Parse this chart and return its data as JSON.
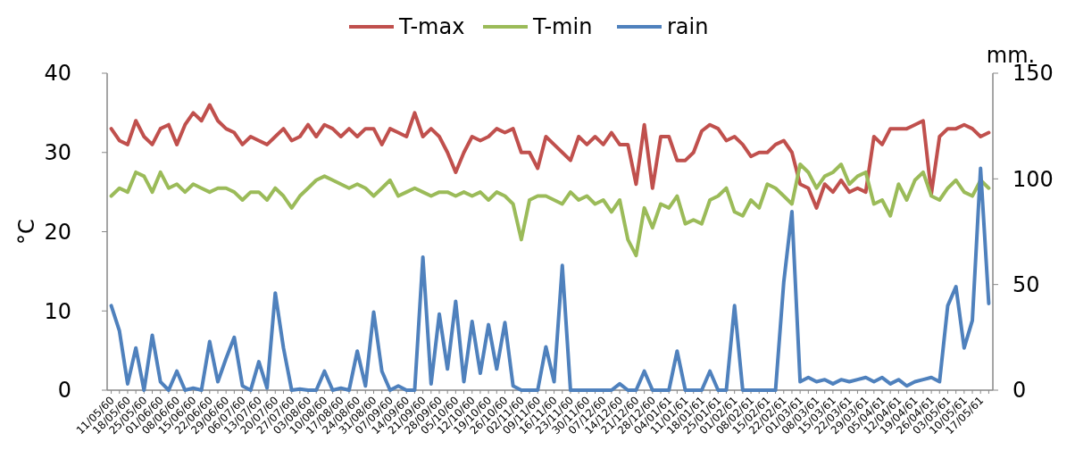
{
  "chart_data": {
    "type": "line",
    "ylabel": "°C",
    "y2label": "mm.",
    "legend": "top",
    "categories": [
      "11/05/60",
      null,
      "18/05/60",
      null,
      "25/05/60",
      null,
      "01/06/60",
      null,
      "08/06/60",
      null,
      "15/06/60",
      null,
      "22/06/60",
      null,
      "29/06/60",
      null,
      "06/07/60",
      null,
      "13/07/60",
      null,
      "20/07/60",
      null,
      "27/07/60",
      null,
      "03/08/60",
      null,
      "10/08/60",
      null,
      "17/08/60",
      null,
      "24/08/60",
      null,
      "31/08/60",
      null,
      "07/09/60",
      null,
      "14/09/60",
      null,
      "21/09/60",
      null,
      "28/09/60",
      null,
      "05/10/60",
      null,
      "12/10/60",
      null,
      "19/10/60",
      null,
      "26/10/60",
      null,
      "02/11/60",
      null,
      "09/11/60",
      null,
      "16/11/60",
      null,
      "23/11/60",
      null,
      "30/11/60",
      null,
      "07/12/60",
      null,
      "14/12/60",
      null,
      "21/12/60",
      null,
      "28/12/60",
      null,
      "04/01/61",
      null,
      "11/01/61",
      null,
      "18/01/61",
      null,
      "25/01/61",
      null,
      "01/02/61",
      null,
      "08/02/61",
      null,
      "15/02/61",
      null,
      "22/02/61",
      null,
      "01/03/61",
      null,
      "08/03/61",
      null,
      "15/03/61",
      null,
      "22/03/61",
      null,
      "29/03/61",
      null,
      "05/04/61",
      null,
      "12/04/61",
      null,
      "19/04/61",
      null,
      "26/04/61",
      null,
      "03/05/61",
      null,
      "10/05/61",
      null,
      "17/05/61",
      null
    ],
    "ylim": [
      0,
      40
    ],
    "yticks": [
      0,
      10,
      20,
      30,
      40
    ],
    "y2lim": [
      0,
      150
    ],
    "y2ticks": [
      0,
      50,
      100,
      150
    ],
    "series": [
      {
        "name": "T-max",
        "color": "#c0504d",
        "values": [
          33,
          31.5,
          31,
          34,
          32,
          31,
          33,
          33.5,
          31,
          33.5,
          35,
          34,
          36,
          34,
          33,
          32.5,
          31,
          32,
          31.5,
          31,
          32,
          33,
          31.5,
          32,
          33.5,
          32,
          33.5,
          33,
          32,
          33,
          32,
          33,
          33,
          31,
          33,
          32.5,
          32,
          35,
          32,
          33,
          32,
          30,
          27.5,
          30,
          32,
          31.5,
          32,
          33,
          32.5,
          33,
          30,
          30,
          28,
          32,
          31,
          30,
          29,
          32,
          31,
          32,
          31,
          32.5,
          31,
          31,
          26,
          33.5,
          25.5,
          32,
          32,
          29,
          29,
          30,
          32.7,
          33.5,
          33,
          31.5,
          32,
          31,
          29.5,
          30,
          30,
          31,
          31.5,
          30,
          26,
          25.5,
          23,
          26,
          25,
          26.5,
          25,
          25.5,
          25,
          32,
          31,
          33,
          33,
          33,
          33.5,
          34,
          24.8,
          32,
          33,
          33,
          33.5,
          33,
          32,
          32.5
        ]
      },
      {
        "name": "T-min",
        "color": "#9bbb59",
        "values": [
          24.5,
          25.5,
          25,
          27.5,
          27,
          25,
          27.5,
          25.5,
          26,
          25,
          26,
          25.5,
          25,
          25.5,
          25.5,
          25,
          24,
          25,
          25,
          24,
          25.5,
          24.5,
          23,
          24.5,
          25.5,
          26.5,
          27,
          26.5,
          26,
          25.5,
          26,
          25.5,
          24.5,
          25.5,
          26.5,
          24.5,
          25,
          25.5,
          25,
          24.5,
          25,
          25,
          24.5,
          25,
          24.5,
          25,
          24,
          25,
          24.5,
          23.5,
          19,
          24,
          24.5,
          24.5,
          24,
          23.5,
          25,
          24,
          24.5,
          23.5,
          24,
          22.5,
          24,
          19,
          17,
          23,
          20.5,
          23.5,
          23,
          24.5,
          21,
          21.5,
          21,
          24,
          24.5,
          25.5,
          22.5,
          22,
          24,
          23,
          26,
          25.5,
          24.5,
          23.5,
          28.5,
          27.5,
          25.5,
          27,
          27.5,
          28.5,
          26,
          27,
          27.5,
          23.5,
          24,
          22,
          26,
          24,
          26.5,
          27.5,
          24.5,
          24,
          25.5,
          26.5,
          25,
          24.5,
          26.5,
          25.5
        ]
      },
      {
        "name": "rain",
        "color": "#4f81bd",
        "axis": "y2",
        "values": [
          40,
          28,
          3,
          20,
          0,
          26,
          4,
          0,
          9,
          0,
          1,
          0,
          23,
          4,
          15,
          25,
          2,
          0,
          13.5,
          1,
          46,
          20,
          0,
          0.5,
          0,
          0,
          9,
          0,
          1,
          0,
          18.5,
          2,
          37,
          9,
          0,
          2,
          0,
          0,
          63,
          3,
          36,
          10,
          42,
          4,
          32.5,
          8,
          31,
          10,
          32,
          2,
          0,
          0,
          0,
          20.5,
          4,
          59,
          0,
          0,
          0,
          0,
          0,
          0,
          3,
          0,
          0,
          9,
          0,
          0,
          0,
          18.5,
          0,
          0,
          0,
          9,
          0,
          0,
          40,
          0,
          0,
          0,
          0,
          0,
          51,
          84.5,
          4,
          6,
          4,
          5,
          3,
          5,
          4,
          5,
          6,
          4,
          6,
          3,
          5,
          2,
          4,
          5,
          6,
          4,
          40,
          49,
          20,
          33,
          105,
          41
        ]
      }
    ]
  }
}
